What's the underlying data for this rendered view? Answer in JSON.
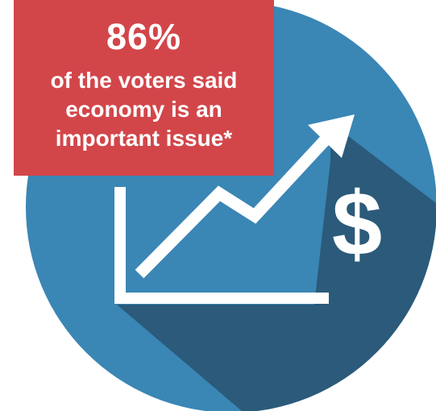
{
  "callout": {
    "stat": "86%",
    "line1": "of the voters said",
    "line2": "economy is an",
    "line3": "important issue*"
  },
  "icon": {
    "currency_symbol": "$",
    "name": "economy-growth-chart-icon"
  },
  "colors": {
    "circle": "#3a86b5",
    "shadow": "#2b5a7a",
    "callout_bg": "#d2464a",
    "foreground": "#ffffff"
  }
}
